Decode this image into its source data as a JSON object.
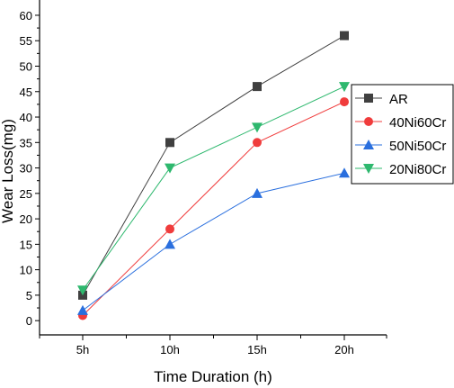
{
  "chart_data": {
    "type": "line",
    "title": "",
    "xlabel": "Time Duration (h)",
    "ylabel": "Wear Loss(mg)",
    "categories": [
      "5h",
      "10h",
      "15h",
      "20h"
    ],
    "y_ticks": [
      0,
      5,
      10,
      15,
      20,
      25,
      30,
      35,
      40,
      45,
      50,
      55,
      60
    ],
    "ylim": [
      -2.8,
      63
    ],
    "grid": false,
    "legend_position": "right",
    "series": [
      {
        "name": "AR",
        "marker": "square",
        "color": "#404040",
        "values": [
          5,
          35,
          46,
          56
        ]
      },
      {
        "name": "40Ni60Cr",
        "marker": "circle",
        "color": "#f03c3c",
        "values": [
          1,
          18,
          35,
          43
        ]
      },
      {
        "name": "50Ni50Cr",
        "marker": "triangle-up",
        "color": "#2a6fde",
        "values": [
          2,
          15,
          25,
          29
        ]
      },
      {
        "name": "20Ni80Cr",
        "marker": "triangle-down",
        "color": "#2eb86e",
        "values": [
          6,
          30,
          38,
          46
        ]
      }
    ]
  }
}
